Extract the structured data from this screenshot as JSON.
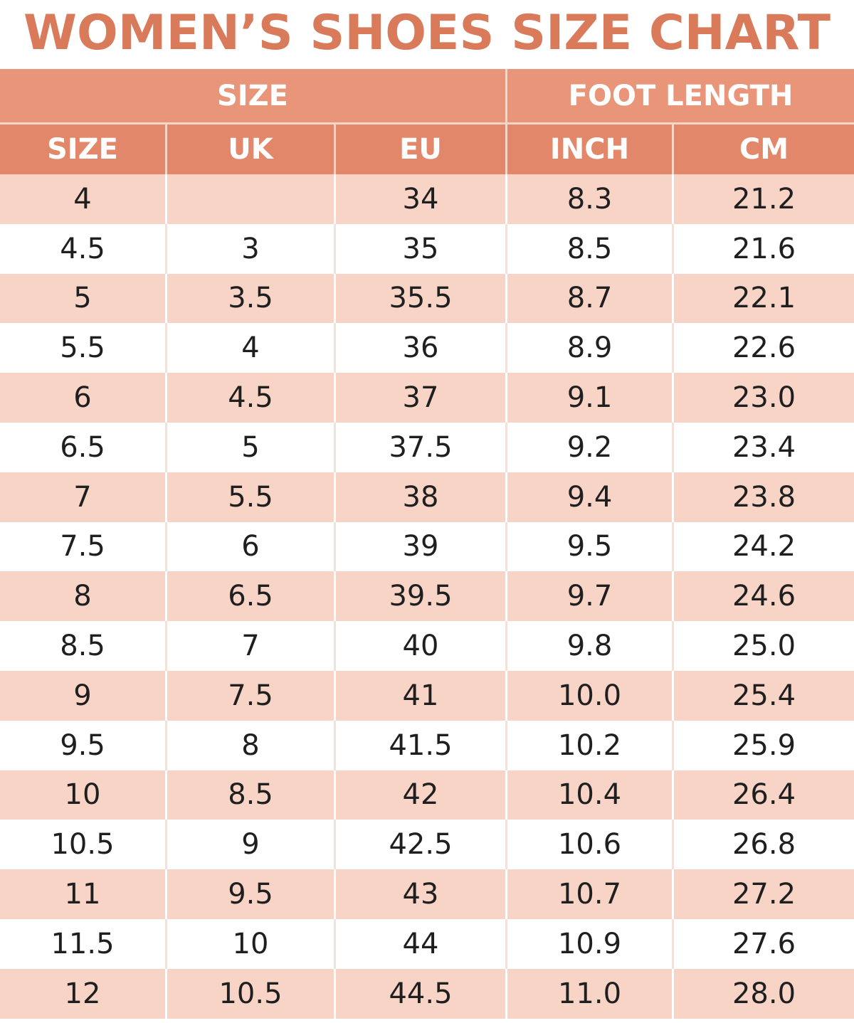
{
  "title": "WOMEN’S SHOES SIZE CHART",
  "group_headers": {
    "size": "SIZE",
    "foot_length": "FOOT LENGTH"
  },
  "column_headers": [
    "SIZE",
    "UK",
    "EU",
    "INCH",
    "CM"
  ],
  "rows": [
    [
      "4",
      "",
      "34",
      "8.3",
      "21.2"
    ],
    [
      "4.5",
      "3",
      "35",
      "8.5",
      "21.6"
    ],
    [
      "5",
      "3.5",
      "35.5",
      "8.7",
      "22.1"
    ],
    [
      "5.5",
      "4",
      "36",
      "8.9",
      "22.6"
    ],
    [
      "6",
      "4.5",
      "37",
      "9.1",
      "23.0"
    ],
    [
      "6.5",
      "5",
      "37.5",
      "9.2",
      "23.4"
    ],
    [
      "7",
      "5.5",
      "38",
      "9.4",
      "23.8"
    ],
    [
      "7.5",
      "6",
      "39",
      "9.5",
      "24.2"
    ],
    [
      "8",
      "6.5",
      "39.5",
      "9.7",
      "24.6"
    ],
    [
      "8.5",
      "7",
      "40",
      "9.8",
      "25.0"
    ],
    [
      "9",
      "7.5",
      "41",
      "10.0",
      "25.4"
    ],
    [
      "9.5",
      "8",
      "41.5",
      "10.2",
      "25.9"
    ],
    [
      "10",
      "8.5",
      "42",
      "10.4",
      "26.4"
    ],
    [
      "10.5",
      "9",
      "42.5",
      "10.6",
      "26.8"
    ],
    [
      "11",
      "9.5",
      "43",
      "10.7",
      "27.2"
    ],
    [
      "11.5",
      "10",
      "44",
      "10.9",
      "27.6"
    ],
    [
      "12",
      "10.5",
      "44.5",
      "11.0",
      "28.0"
    ]
  ],
  "colors": {
    "title": "#D97A5B",
    "header": "#E58F72",
    "row_shade": "#F7D4C6",
    "row_plain": "#FFFFFF"
  }
}
